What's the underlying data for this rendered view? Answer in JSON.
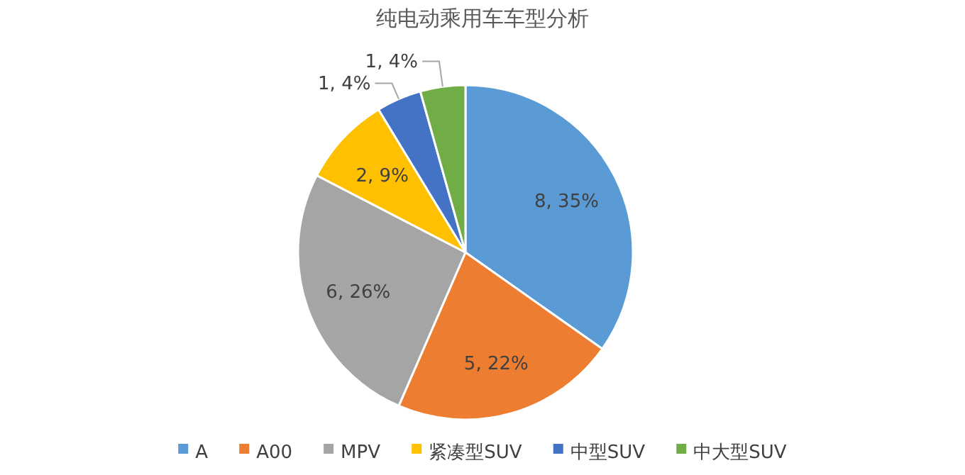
{
  "chart_data": {
    "type": "pie",
    "title": "纯电动乘用车车型分析",
    "categories": [
      "A",
      "A00",
      "MPV",
      "紧凑型SUV",
      "中型SUV",
      "中大型SUV"
    ],
    "values": [
      8,
      5,
      6,
      2,
      1,
      1
    ],
    "colors": [
      "#5b9bd5",
      "#ed7d31",
      "#a5a5a5",
      "#ffc000",
      "#4472c4",
      "#70ad47"
    ],
    "value_labels": [
      "8, 35%",
      "5, 22%",
      "6, 26%",
      "2, 9%",
      "1, 4%",
      "1, 4%"
    ],
    "legend": "bottom"
  }
}
